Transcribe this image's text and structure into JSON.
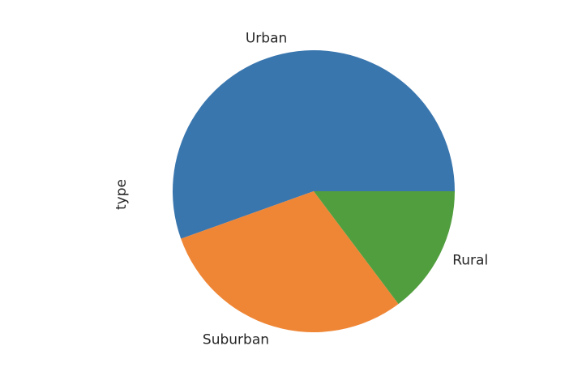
{
  "chart_data": {
    "type": "pie",
    "ylabel": "type",
    "start_angle_deg": 0,
    "direction": "counterclockwise",
    "slices": [
      {
        "label": "Urban",
        "value": 0.5547,
        "color": "#3a76ae"
      },
      {
        "label": "Suburban",
        "value": 0.2979,
        "color": "#ef8636"
      },
      {
        "label": "Rural",
        "value": 0.1474,
        "color": "#519e3e"
      }
    ]
  }
}
